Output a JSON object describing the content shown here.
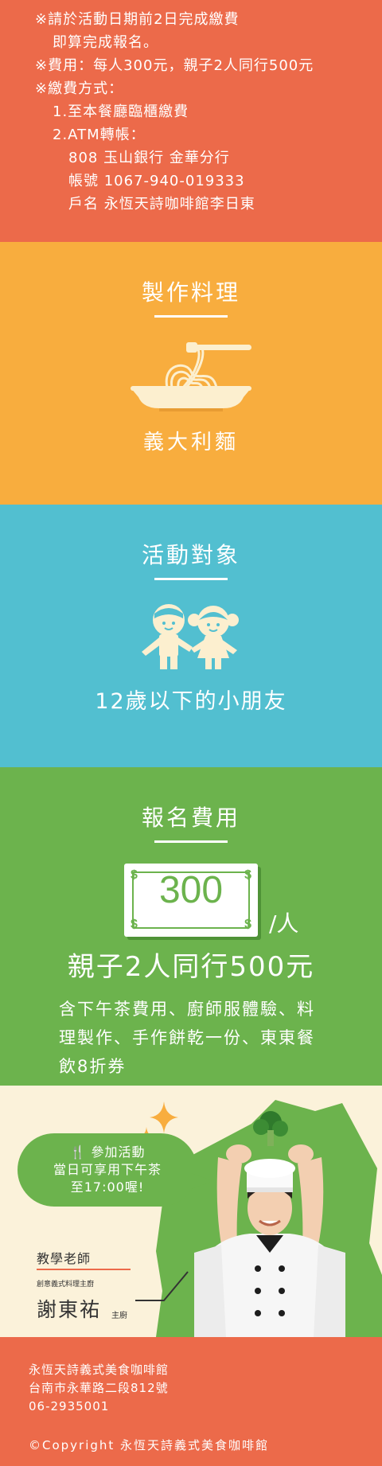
{
  "notes": {
    "line1": "※請於活動日期前2日完成繳費",
    "line2": "即算完成報名。",
    "line3": "※費用：每人300元，親子2人同行500元",
    "line4": "※繳費方式：",
    "line5": "1.至本餐廳臨櫃繳費",
    "line6": "2.ATM轉帳：",
    "line7": "808 玉山銀行  金華分行",
    "line8": "帳號  1067-940-019333",
    "line9": "戶名  永恆天詩咖啡館李日東"
  },
  "cook": {
    "title": "製作料理",
    "label": "義大利麵",
    "icon": "pasta-icon"
  },
  "target": {
    "title": "活動對象",
    "label": "12歲以下的小朋友",
    "icon": "kids-icon"
  },
  "fee": {
    "title": "報名費用",
    "amount": "300",
    "dollar_sign": "$",
    "per": "/人",
    "main": "親子2人同行500元",
    "desc": "含下午茶費用、廚師服體驗、料理製作、手作餅乾一份、東東餐飲8折券"
  },
  "teacher": {
    "bubble_line1": "參加活動",
    "bubble_line2": "當日可享用下午茶",
    "bubble_line3": "至17:00喔!",
    "role": "教學老師",
    "subtitle": "創意義式料理主廚",
    "name": "謝東祐",
    "tag": "主廚"
  },
  "footer": {
    "name": "永恆天詩義式美食咖啡館",
    "address": "台南市永華路二段812號",
    "phone": "06-2935001",
    "copyright": "©Copyright  永恆天詩義式美食咖啡館"
  },
  "colors": {
    "orange_red": "#ec6a4a",
    "yellow": "#f8ad3e",
    "cyan": "#52bfd0",
    "green": "#6cb34d",
    "cream": "#fbf2da"
  }
}
